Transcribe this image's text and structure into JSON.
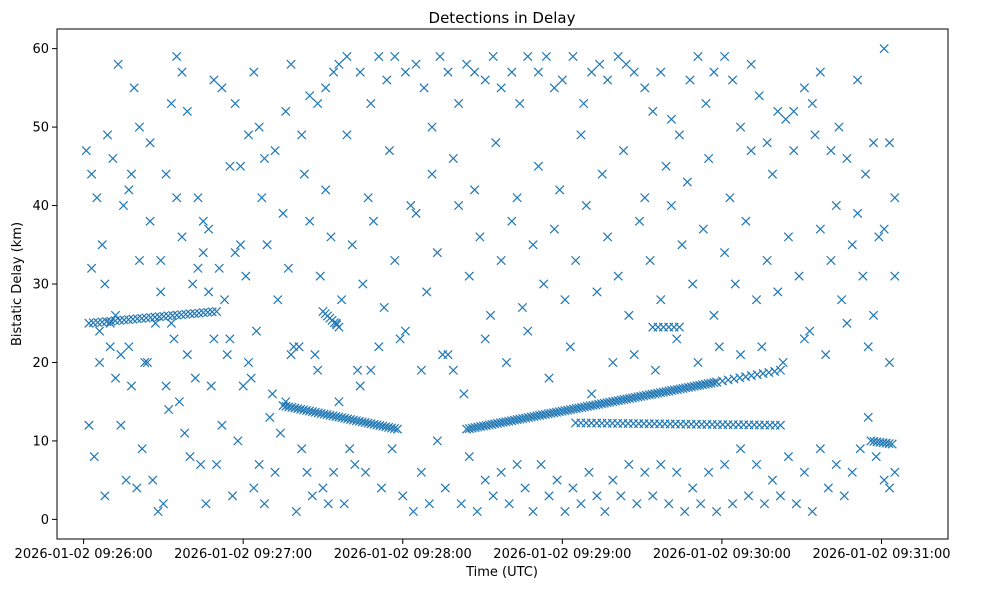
{
  "chart_data": {
    "type": "scatter",
    "title": "Detections in Delay",
    "xlabel": "Time (UTC)",
    "ylabel": "Bistatic Delay (km)",
    "x_unit": "seconds after 2026-01-02 09:26:00",
    "xlim": [
      -10,
      325
    ],
    "ylim": [
      -2.5,
      62.5
    ],
    "x_ticks": [
      0,
      60,
      120,
      180,
      240,
      300
    ],
    "x_tick_labels": [
      "2026-01-02 09:26:00",
      "2026-01-02 09:27:00",
      "2026-01-02 09:28:00",
      "2026-01-02 09:29:00",
      "2026-01-02 09:30:00",
      "2026-01-02 09:31:00"
    ],
    "y_ticks": [
      0,
      10,
      20,
      30,
      40,
      50,
      60
    ],
    "y_tick_labels": [
      "0",
      "10",
      "20",
      "30",
      "40",
      "50",
      "60"
    ],
    "marker": "x",
    "color": "#1f77b4",
    "grid": false,
    "tracks": [
      {
        "x_start": 2,
        "x_end": 50,
        "y_start": 25.0,
        "y_end": 26.5,
        "count": 30
      },
      {
        "x_start": 75,
        "x_end": 118,
        "y_start": 14.5,
        "y_end": 11.5,
        "count": 40
      },
      {
        "x_start": 90,
        "x_end": 96,
        "y_start": 26.5,
        "y_end": 24.5,
        "count": 8
      },
      {
        "x_start": 144,
        "x_end": 238,
        "y_start": 11.5,
        "y_end": 17.5,
        "count": 90
      },
      {
        "x_start": 238,
        "x_end": 262,
        "y_start": 17.5,
        "y_end": 19.0,
        "count": 12
      },
      {
        "x_start": 185,
        "x_end": 262,
        "y_start": 12.3,
        "y_end": 12.0,
        "count": 40
      },
      {
        "x_start": 214,
        "x_end": 224,
        "y_start": 24.5,
        "y_end": 24.5,
        "count": 6
      },
      {
        "x_start": 296,
        "x_end": 304,
        "y_start": 10.0,
        "y_end": 9.6,
        "count": 8
      }
    ],
    "clutter": [
      [
        1,
        47
      ],
      [
        3,
        44
      ],
      [
        5,
        41
      ],
      [
        7,
        35
      ],
      [
        9,
        49
      ],
      [
        11,
        46
      ],
      [
        13,
        58
      ],
      [
        15,
        40
      ],
      [
        17,
        42
      ],
      [
        19,
        55
      ],
      [
        21,
        50
      ],
      [
        25,
        48
      ],
      [
        29,
        33
      ],
      [
        31,
        44
      ],
      [
        33,
        53
      ],
      [
        35,
        59
      ],
      [
        37,
        57
      ],
      [
        39,
        52
      ],
      [
        43,
        41
      ],
      [
        45,
        38
      ],
      [
        47,
        37
      ],
      [
        49,
        56
      ],
      [
        52,
        55
      ],
      [
        55,
        45
      ],
      [
        57,
        53
      ],
      [
        59,
        45
      ],
      [
        62,
        49
      ],
      [
        64,
        57
      ],
      [
        66,
        50
      ],
      [
        68,
        46
      ],
      [
        72,
        47
      ],
      [
        76,
        52
      ],
      [
        78,
        58
      ],
      [
        82,
        49
      ],
      [
        85,
        54
      ],
      [
        88,
        53
      ],
      [
        91,
        55
      ],
      [
        94,
        57
      ],
      [
        96,
        58
      ],
      [
        99,
        59
      ],
      [
        104,
        57
      ],
      [
        108,
        53
      ],
      [
        111,
        59
      ],
      [
        114,
        56
      ],
      [
        117,
        59
      ],
      [
        121,
        57
      ],
      [
        125,
        58
      ],
      [
        128,
        55
      ],
      [
        131,
        50
      ],
      [
        134,
        59
      ],
      [
        137,
        57
      ],
      [
        141,
        53
      ],
      [
        144,
        58
      ],
      [
        147,
        57
      ],
      [
        151,
        56
      ],
      [
        154,
        59
      ],
      [
        157,
        55
      ],
      [
        161,
        57
      ],
      [
        164,
        53
      ],
      [
        167,
        59
      ],
      [
        171,
        57
      ],
      [
        174,
        59
      ],
      [
        177,
        55
      ],
      [
        180,
        56
      ],
      [
        184,
        59
      ],
      [
        188,
        53
      ],
      [
        191,
        57
      ],
      [
        194,
        58
      ],
      [
        197,
        56
      ],
      [
        201,
        59
      ],
      [
        204,
        58
      ],
      [
        207,
        57
      ],
      [
        211,
        55
      ],
      [
        214,
        52
      ],
      [
        217,
        57
      ],
      [
        221,
        51
      ],
      [
        224,
        49
      ],
      [
        228,
        56
      ],
      [
        231,
        59
      ],
      [
        234,
        53
      ],
      [
        237,
        57
      ],
      [
        241,
        59
      ],
      [
        244,
        56
      ],
      [
        247,
        50
      ],
      [
        251,
        58
      ],
      [
        254,
        54
      ],
      [
        257,
        48
      ],
      [
        261,
        52
      ],
      [
        264,
        51
      ],
      [
        267,
        47
      ],
      [
        271,
        55
      ],
      [
        274,
        53
      ],
      [
        277,
        57
      ],
      [
        281,
        47
      ],
      [
        284,
        50
      ],
      [
        287,
        46
      ],
      [
        291,
        56
      ],
      [
        294,
        44
      ],
      [
        297,
        48
      ],
      [
        301,
        60
      ],
      [
        303,
        48
      ],
      [
        305,
        41
      ],
      [
        2,
        12
      ],
      [
        4,
        8
      ],
      [
        6,
        20
      ],
      [
        8,
        3
      ],
      [
        10,
        22
      ],
      [
        12,
        18
      ],
      [
        14,
        12
      ],
      [
        16,
        5
      ],
      [
        18,
        17
      ],
      [
        20,
        4
      ],
      [
        22,
        9
      ],
      [
        24,
        20
      ],
      [
        26,
        5
      ],
      [
        28,
        1
      ],
      [
        30,
        2
      ],
      [
        32,
        14
      ],
      [
        34,
        23
      ],
      [
        36,
        15
      ],
      [
        38,
        11
      ],
      [
        40,
        8
      ],
      [
        42,
        18
      ],
      [
        44,
        7
      ],
      [
        46,
        2
      ],
      [
        48,
        17
      ],
      [
        50,
        7
      ],
      [
        52,
        12
      ],
      [
        54,
        21
      ],
      [
        56,
        3
      ],
      [
        58,
        10
      ],
      [
        60,
        17
      ],
      [
        62,
        20
      ],
      [
        64,
        4
      ],
      [
        66,
        7
      ],
      [
        68,
        2
      ],
      [
        70,
        13
      ],
      [
        72,
        6
      ],
      [
        74,
        11
      ],
      [
        76,
        15
      ],
      [
        78,
        21
      ],
      [
        80,
        1
      ],
      [
        82,
        9
      ],
      [
        84,
        6
      ],
      [
        86,
        3
      ],
      [
        88,
        19
      ],
      [
        90,
        4
      ],
      [
        92,
        2
      ],
      [
        94,
        6
      ],
      [
        96,
        15
      ],
      [
        98,
        2
      ],
      [
        100,
        9
      ],
      [
        102,
        7
      ],
      [
        104,
        17
      ],
      [
        106,
        6
      ],
      [
        108,
        19
      ],
      [
        112,
        4
      ],
      [
        116,
        9
      ],
      [
        120,
        3
      ],
      [
        124,
        1
      ],
      [
        127,
        6
      ],
      [
        130,
        2
      ],
      [
        133,
        10
      ],
      [
        136,
        4
      ],
      [
        139,
        19
      ],
      [
        142,
        2
      ],
      [
        145,
        8
      ],
      [
        148,
        1
      ],
      [
        151,
        5
      ],
      [
        154,
        3
      ],
      [
        157,
        6
      ],
      [
        160,
        2
      ],
      [
        163,
        7
      ],
      [
        166,
        4
      ],
      [
        169,
        1
      ],
      [
        172,
        7
      ],
      [
        175,
        3
      ],
      [
        178,
        5
      ],
      [
        181,
        1
      ],
      [
        184,
        4
      ],
      [
        187,
        2
      ],
      [
        190,
        6
      ],
      [
        193,
        3
      ],
      [
        196,
        1
      ],
      [
        199,
        5
      ],
      [
        202,
        3
      ],
      [
        205,
        7
      ],
      [
        208,
        2
      ],
      [
        211,
        6
      ],
      [
        214,
        3
      ],
      [
        217,
        7
      ],
      [
        220,
        2
      ],
      [
        223,
        6
      ],
      [
        226,
        1
      ],
      [
        229,
        4
      ],
      [
        232,
        2
      ],
      [
        235,
        6
      ],
      [
        238,
        1
      ],
      [
        241,
        7
      ],
      [
        244,
        2
      ],
      [
        247,
        9
      ],
      [
        250,
        3
      ],
      [
        253,
        7
      ],
      [
        256,
        2
      ],
      [
        259,
        5
      ],
      [
        262,
        3
      ],
      [
        265,
        8
      ],
      [
        268,
        2
      ],
      [
        271,
        6
      ],
      [
        274,
        1
      ],
      [
        277,
        9
      ],
      [
        280,
        4
      ],
      [
        283,
        7
      ],
      [
        286,
        3
      ],
      [
        289,
        6
      ],
      [
        292,
        9
      ],
      [
        295,
        13
      ],
      [
        298,
        8
      ],
      [
        301,
        5
      ],
      [
        303,
        4
      ],
      [
        305,
        6
      ],
      [
        3,
        32
      ],
      [
        8,
        30
      ],
      [
        12,
        26
      ],
      [
        17,
        22
      ],
      [
        21,
        33
      ],
      [
        25,
        38
      ],
      [
        29,
        29
      ],
      [
        33,
        25
      ],
      [
        37,
        36
      ],
      [
        41,
        30
      ],
      [
        45,
        34
      ],
      [
        49,
        23
      ],
      [
        53,
        28
      ],
      [
        57,
        34
      ],
      [
        61,
        31
      ],
      [
        65,
        24
      ],
      [
        69,
        35
      ],
      [
        73,
        28
      ],
      [
        77,
        32
      ],
      [
        81,
        22
      ],
      [
        85,
        38
      ],
      [
        89,
        31
      ],
      [
        93,
        36
      ],
      [
        97,
        28
      ],
      [
        101,
        35
      ],
      [
        105,
        30
      ],
      [
        109,
        38
      ],
      [
        113,
        27
      ],
      [
        117,
        33
      ],
      [
        121,
        24
      ],
      [
        125,
        39
      ],
      [
        129,
        29
      ],
      [
        133,
        34
      ],
      [
        137,
        21
      ],
      [
        141,
        40
      ],
      [
        145,
        31
      ],
      [
        149,
        36
      ],
      [
        153,
        26
      ],
      [
        157,
        33
      ],
      [
        161,
        38
      ],
      [
        165,
        27
      ],
      [
        169,
        35
      ],
      [
        173,
        30
      ],
      [
        177,
        37
      ],
      [
        181,
        28
      ],
      [
        185,
        33
      ],
      [
        189,
        40
      ],
      [
        193,
        29
      ],
      [
        197,
        36
      ],
      [
        201,
        31
      ],
      [
        205,
        26
      ],
      [
        209,
        38
      ],
      [
        213,
        33
      ],
      [
        217,
        28
      ],
      [
        221,
        40
      ],
      [
        225,
        35
      ],
      [
        229,
        30
      ],
      [
        233,
        37
      ],
      [
        237,
        26
      ],
      [
        241,
        34
      ],
      [
        245,
        30
      ],
      [
        249,
        38
      ],
      [
        253,
        28
      ],
      [
        257,
        33
      ],
      [
        261,
        29
      ],
      [
        265,
        36
      ],
      [
        269,
        31
      ],
      [
        273,
        24
      ],
      [
        277,
        37
      ],
      [
        281,
        33
      ],
      [
        285,
        28
      ],
      [
        289,
        35
      ],
      [
        293,
        31
      ],
      [
        297,
        26
      ],
      [
        301,
        37
      ],
      [
        305,
        31
      ],
      [
        6,
        24
      ],
      [
        14,
        21
      ],
      [
        23,
        20
      ],
      [
        31,
        17
      ],
      [
        39,
        21
      ],
      [
        47,
        29
      ],
      [
        55,
        23
      ],
      [
        63,
        18
      ],
      [
        71,
        16
      ],
      [
        79,
        22
      ],
      [
        87,
        21
      ],
      [
        95,
        25
      ],
      [
        103,
        19
      ],
      [
        111,
        22
      ],
      [
        119,
        23
      ],
      [
        127,
        19
      ],
      [
        135,
        21
      ],
      [
        143,
        16
      ],
      [
        151,
        23
      ],
      [
        159,
        20
      ],
      [
        167,
        24
      ],
      [
        175,
        18
      ],
      [
        183,
        22
      ],
      [
        191,
        16
      ],
      [
        199,
        20
      ],
      [
        207,
        21
      ],
      [
        215,
        19
      ],
      [
        223,
        23
      ],
      [
        231,
        20
      ],
      [
        239,
        22
      ],
      [
        247,
        21
      ],
      [
        255,
        22
      ],
      [
        263,
        20
      ],
      [
        271,
        23
      ],
      [
        279,
        21
      ],
      [
        287,
        25
      ],
      [
        295,
        22
      ],
      [
        303,
        20
      ],
      [
        10,
        25
      ],
      [
        18,
        44
      ],
      [
        27,
        25
      ],
      [
        35,
        41
      ],
      [
        43,
        32
      ],
      [
        51,
        32
      ],
      [
        59,
        35
      ],
      [
        67,
        41
      ],
      [
        75,
        39
      ],
      [
        83,
        44
      ],
      [
        91,
        42
      ],
      [
        99,
        49
      ],
      [
        107,
        41
      ],
      [
        115,
        47
      ],
      [
        123,
        40
      ],
      [
        131,
        44
      ],
      [
        139,
        46
      ],
      [
        147,
        42
      ],
      [
        155,
        48
      ],
      [
        163,
        41
      ],
      [
        171,
        45
      ],
      [
        179,
        42
      ],
      [
        187,
        49
      ],
      [
        195,
        44
      ],
      [
        203,
        47
      ],
      [
        211,
        41
      ],
      [
        219,
        45
      ],
      [
        227,
        43
      ],
      [
        235,
        46
      ],
      [
        243,
        41
      ],
      [
        251,
        47
      ],
      [
        259,
        44
      ],
      [
        267,
        52
      ],
      [
        275,
        49
      ],
      [
        283,
        40
      ],
      [
        291,
        39
      ],
      [
        299,
        36
      ]
    ]
  }
}
